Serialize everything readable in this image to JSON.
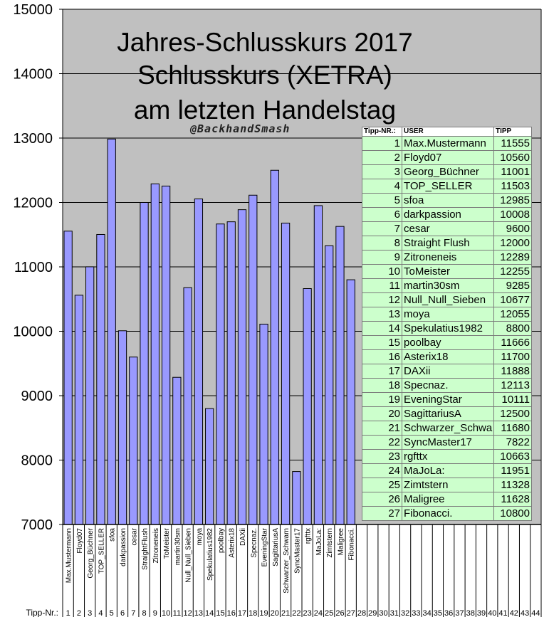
{
  "title_lines": [
    "Jahres-Schlusskurs 2017",
    "Schlusskurs (XETRA)",
    "am letzten Handelstag"
  ],
  "credit": "@BackhandSmash",
  "x_axis_prefix": "Tipp-Nr.:",
  "table": {
    "headers": [
      "Tipp-NR.:",
      "USER",
      "TIPP"
    ],
    "rows": [
      [
        "1",
        "Max.Mustermann",
        "11555"
      ],
      [
        "2",
        "Floyd07",
        "10560"
      ],
      [
        "3",
        "Georg_Büchner",
        "11001"
      ],
      [
        "4",
        "TOP_SELLER",
        "11503"
      ],
      [
        "5",
        "sfoa",
        "12985"
      ],
      [
        "6",
        "darkpassion",
        "10008"
      ],
      [
        "7",
        "cesar",
        "9600"
      ],
      [
        "8",
        "Straight Flush",
        "12000"
      ],
      [
        "9",
        "Zitroneneis",
        "12289"
      ],
      [
        "10",
        "ToMeister",
        "12255"
      ],
      [
        "11",
        "martin30sm",
        "9285"
      ],
      [
        "12",
        "Null_Null_Sieben",
        "10677"
      ],
      [
        "13",
        "moya",
        "12055"
      ],
      [
        "14",
        "Spekulatius1982",
        "8800"
      ],
      [
        "15",
        "poolbay",
        "11666"
      ],
      [
        "16",
        "Asterix18",
        "11700"
      ],
      [
        "17",
        "DAXii",
        "11888"
      ],
      [
        "18",
        "Specnaz.",
        "12113"
      ],
      [
        "19",
        "EveningStar",
        "10111"
      ],
      [
        "20",
        "SagittariusA",
        "12500"
      ],
      [
        "21",
        "Schwarzer_Schwa",
        "11680"
      ],
      [
        "22",
        "SyncMaster17",
        "7822"
      ],
      [
        "23",
        "rgfttx",
        "10663"
      ],
      [
        "24",
        "MaJoLa:",
        "11951"
      ],
      [
        "25",
        "Zimtstern",
        "11328"
      ],
      [
        "26",
        "Maligree",
        "11628"
      ],
      [
        "27",
        "Fibonacci.",
        "10800"
      ]
    ]
  },
  "chart_data": {
    "type": "bar",
    "ylim": [
      7000,
      15000
    ],
    "y_ticks": [
      7000,
      8000,
      9000,
      10000,
      11000,
      12000,
      13000,
      14000,
      15000
    ],
    "grid": true,
    "bar_color": "#9999ff",
    "plot_background": "#c0c0c0",
    "x_numbers": [
      1,
      2,
      3,
      4,
      5,
      6,
      7,
      8,
      9,
      10,
      11,
      12,
      13,
      14,
      15,
      16,
      17,
      18,
      19,
      20,
      21,
      22,
      23,
      24,
      25,
      26,
      27,
      28,
      29,
      30,
      31,
      32,
      33,
      34,
      35,
      36,
      37,
      38,
      39,
      40,
      41,
      42,
      43,
      44
    ],
    "categories": [
      "Max.Mustermann",
      "Floyd07",
      "Georg_Büchner",
      "TOP_SELLER",
      "sfoa",
      "darkpassion",
      "cesar",
      "StraightFlush",
      "Zitroneneis",
      "ToMeister",
      "martin30sm",
      "Null_Null_Sieben",
      "moya",
      "Spekulatius1982",
      "poolbay",
      "Asterix18",
      "DAXii",
      "Specnaz.",
      "EveningStar",
      "SagittariusA",
      "Schwarzer_Schwarn",
      "SyncMaster17",
      "rgfttx",
      "MaJoLa:",
      "Zimtstern",
      "Maligree",
      "Fibonacci."
    ],
    "values": [
      11555,
      10560,
      11001,
      11503,
      12985,
      10008,
      9600,
      12000,
      12289,
      12255,
      9285,
      10677,
      12055,
      8800,
      11666,
      11700,
      11888,
      12113,
      10111,
      12500,
      11680,
      7822,
      10663,
      11951,
      11328,
      11628,
      10800
    ]
  }
}
